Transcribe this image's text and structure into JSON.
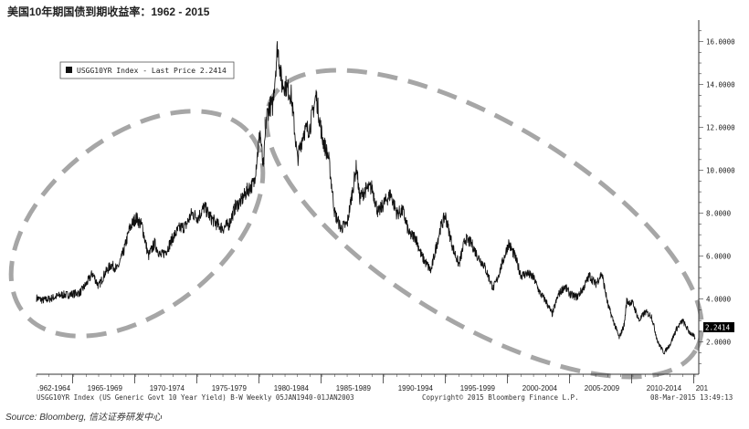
{
  "title": "美国10年期国债到期收益率：1962 - 2015",
  "source": "Source: Bloomberg, 信达证券研发中心",
  "meta": {
    "left": "USGG10YR Index (US Generic Govt 10 Year Yield) B-W  Weekly 05JAN1940-01JAN2003",
    "center": "Copyright© 2015 Bloomberg Finance L.P.",
    "right": "08-Mar-2015 13:49:13"
  },
  "chart_data": {
    "type": "line",
    "title": "美国10年期国债到期收益率：1962 - 2015",
    "legend": "USGG10YR Index - Last Price 2.2414",
    "legend_position": "top-left",
    "last_value_label": "2.2414",
    "x_tick_labels": [
      ".962-1964",
      "1965-1969",
      "1970-1974",
      "1975-1979",
      "1980-1984",
      "1985-1989",
      "1990-1994",
      "1995-1999",
      "2000-2004",
      "2005-2009",
      "2010-2014",
      "201"
    ],
    "y_tick_labels": [
      "2.0000",
      "4.0000",
      "6.0000",
      "8.0000",
      "10.0000",
      "12.0000",
      "14.0000",
      "16.0000"
    ],
    "ylim": [
      0.5,
      17
    ],
    "xlim": [
      1962.0,
      2015.3
    ],
    "y_axis_side": "right",
    "grid": false,
    "annotations": [
      "dashed ellipse 1962-1981 rising",
      "dashed ellipse 1981-2015 falling"
    ],
    "series": [
      {
        "x": [
          1962.0,
          1962.5,
          1963.0,
          1963.5,
          1964.0,
          1964.5,
          1965.0,
          1965.5,
          1966.0,
          1966.5,
          1967.0,
          1967.5,
          1968.0,
          1968.5,
          1969.0,
          1969.5,
          1970.0,
          1970.5,
          1971.0,
          1971.5,
          1972.0,
          1972.5,
          1973.0,
          1973.5,
          1974.0,
          1974.5,
          1975.0,
          1975.5,
          1976.0,
          1976.5,
          1977.0,
          1977.5,
          1978.0,
          1978.5,
          1979.0,
          1979.5,
          1980.0,
          1980.25,
          1980.5,
          1980.75,
          1981.0,
          1981.4,
          1981.75,
          1982.0,
          1982.5,
          1983.0,
          1983.5,
          1984.0,
          1984.5,
          1985.0,
          1985.5,
          1986.0,
          1986.5,
          1987.0,
          1987.75,
          1988.0,
          1988.5,
          1989.0,
          1989.5,
          1990.0,
          1990.5,
          1991.0,
          1991.5,
          1992.0,
          1992.5,
          1993.0,
          1993.75,
          1994.0,
          1994.5,
          1994.9,
          1995.5,
          1996.0,
          1996.5,
          1997.0,
          1997.5,
          1998.0,
          1998.75,
          1999.0,
          1999.5,
          2000.0,
          2000.5,
          2001.0,
          2001.5,
          2002.0,
          2002.5,
          2003.0,
          2003.5,
          2004.0,
          2004.5,
          2005.0,
          2005.5,
          2006.0,
          2006.5,
          2007.0,
          2007.5,
          2008.0,
          2008.9,
          2009.3,
          2009.5,
          2010.0,
          2010.5,
          2011.0,
          2011.5,
          2012.0,
          2012.5,
          2013.0,
          2013.5,
          2014.0,
          2014.5,
          2015.0
        ],
        "values": [
          4.05,
          3.95,
          4.0,
          4.1,
          4.2,
          4.2,
          4.25,
          4.3,
          4.7,
          5.2,
          4.6,
          5.2,
          5.6,
          5.4,
          6.2,
          7.3,
          7.8,
          7.4,
          6.0,
          6.6,
          6.0,
          6.3,
          6.9,
          7.3,
          7.4,
          8.0,
          7.8,
          8.3,
          7.8,
          7.5,
          7.3,
          7.5,
          8.3,
          8.6,
          9.1,
          9.4,
          11.8,
          10.0,
          12.5,
          13.0,
          13.0,
          15.8,
          14.0,
          14.0,
          13.5,
          10.5,
          11.8,
          12.0,
          13.5,
          11.5,
          10.6,
          8.0,
          7.3,
          7.5,
          10.2,
          8.7,
          9.1,
          9.2,
          8.0,
          8.5,
          8.9,
          8.0,
          8.1,
          7.0,
          6.9,
          6.0,
          5.3,
          6.0,
          7.3,
          7.9,
          6.4,
          5.6,
          6.8,
          6.6,
          6.0,
          5.6,
          4.5,
          4.8,
          5.7,
          6.6,
          6.0,
          5.1,
          5.2,
          5.0,
          4.3,
          3.9,
          3.3,
          4.2,
          4.6,
          4.2,
          4.1,
          4.5,
          5.1,
          4.7,
          5.2,
          3.7,
          2.2,
          2.8,
          3.9,
          3.8,
          3.0,
          3.4,
          3.2,
          2.0,
          1.5,
          1.9,
          2.6,
          3.0,
          2.5,
          2.2
        ]
      }
    ]
  }
}
